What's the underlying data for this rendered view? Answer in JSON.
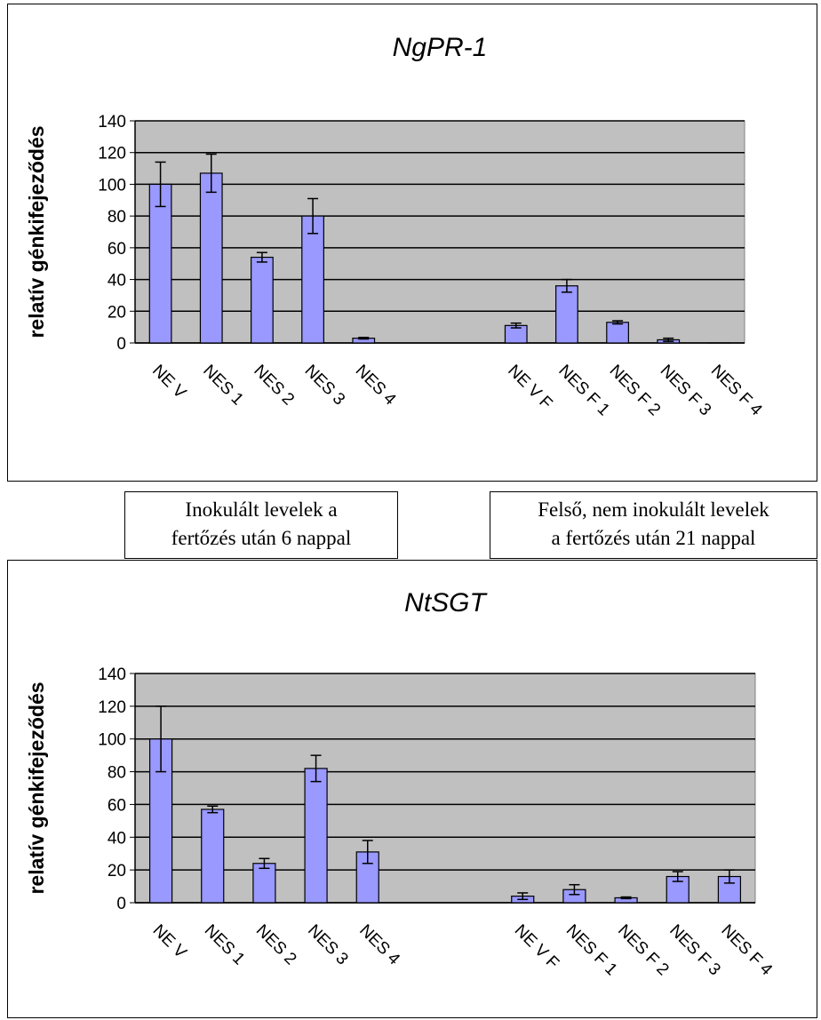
{
  "notes": {
    "left_line1": "Inokulált levelek a",
    "left_line2": "fertőzés után 6 nappal",
    "right_line1": "Felső, nem inokulált levelek",
    "right_line2": "a fertőzés után 21 nappal"
  },
  "chart_data": [
    {
      "type": "bar",
      "title": "NgPR-1",
      "ylabel": "relatív génkifejeződés",
      "xlabel": "",
      "ylim": [
        0,
        140
      ],
      "yticks": [
        0,
        20,
        40,
        60,
        80,
        100,
        120,
        140
      ],
      "grid": true,
      "plot_background": "#c0c0c0",
      "bar_color": "#9999ff",
      "categories": [
        "NE V",
        "NES 1",
        "NES 2",
        "NES 3",
        "NES 4",
        "",
        "",
        "NE V F",
        "NES F 1",
        "NES F 2",
        "NES F 3",
        "NES F 4"
      ],
      "values": [
        100,
        107,
        54,
        80,
        3,
        null,
        null,
        11,
        36,
        13,
        2,
        0
      ],
      "errors": [
        14,
        12,
        3,
        11,
        0.5,
        null,
        null,
        1.5,
        4,
        1,
        1,
        0
      ]
    },
    {
      "type": "bar",
      "title": "NtSGT",
      "ylabel": "relatív génkifejeződés",
      "xlabel": "",
      "ylim": [
        0,
        140
      ],
      "yticks": [
        0,
        20,
        40,
        60,
        80,
        100,
        120,
        140
      ],
      "grid": true,
      "plot_background": "#c0c0c0",
      "bar_color": "#9999ff",
      "categories": [
        "NE V",
        "NES 1",
        "NES 2",
        "NES 3",
        "NES 4",
        "",
        "",
        "NE V F",
        "NES F 1",
        "NES F 2",
        "NES F 3",
        "NES F 4"
      ],
      "values": [
        100,
        57,
        24,
        82,
        31,
        null,
        null,
        4,
        8,
        3,
        16,
        16
      ],
      "errors": [
        20,
        2,
        3,
        8,
        7,
        null,
        null,
        2,
        3,
        0.5,
        3,
        4
      ]
    }
  ]
}
